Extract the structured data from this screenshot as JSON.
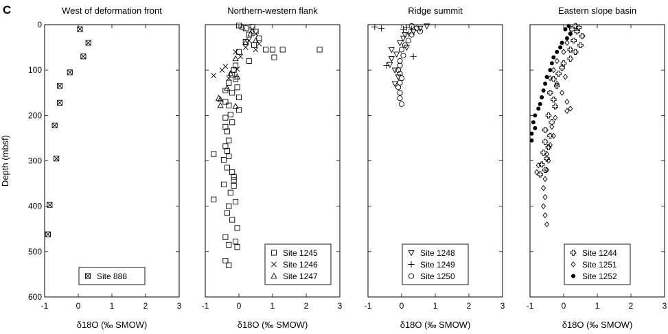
{
  "panel_label": "C",
  "y_axis_label": "Depth (mbsf)",
  "chart_data": [
    {
      "type": "scatter",
      "title": "West of deformation front",
      "xlabel": "δ18O (‰ SMOW)",
      "ylabel": "Depth (mbsf)",
      "xlim": [
        -1,
        3
      ],
      "ylim": [
        600,
        0
      ],
      "x_ticks": [
        -1,
        0,
        1,
        2,
        3
      ],
      "y_ticks": [
        0,
        100,
        200,
        300,
        400,
        500,
        600
      ],
      "legend_position": "bottom-center",
      "series": [
        {
          "name": "Site 888",
          "marker": "boxed-x",
          "points": [
            [
              0.05,
              10
            ],
            [
              0.3,
              40
            ],
            [
              0.15,
              70
            ],
            [
              -0.25,
              105
            ],
            [
              -0.55,
              135
            ],
            [
              -0.55,
              172
            ],
            [
              -0.7,
              222
            ],
            [
              -0.65,
              295
            ],
            [
              -0.85,
              397
            ],
            [
              -0.9,
              462
            ]
          ]
        }
      ]
    },
    {
      "type": "scatter",
      "title": "Northern-western flank",
      "xlabel": "δ18O (‰ SMOW)",
      "ylabel": "",
      "xlim": [
        -1,
        3
      ],
      "ylim": [
        600,
        0
      ],
      "x_ticks": [
        -1,
        0,
        1,
        2,
        3
      ],
      "y_ticks": [
        0,
        100,
        200,
        300,
        400,
        500,
        600
      ],
      "legend_position": "bottom-right",
      "series": [
        {
          "name": "Site 1245",
          "marker": "square",
          "points": [
            [
              0.0,
              2
            ],
            [
              0.2,
              8
            ],
            [
              0.4,
              5
            ],
            [
              0.5,
              15
            ],
            [
              0.3,
              22
            ],
            [
              0.6,
              30
            ],
            [
              0.2,
              38
            ],
            [
              0.45,
              45
            ],
            [
              0.8,
              55
            ],
            [
              1.3,
              55
            ],
            [
              2.4,
              55
            ],
            [
              1.0,
              55
            ],
            [
              0.0,
              60
            ],
            [
              1.05,
              72
            ],
            [
              0.3,
              80
            ],
            [
              -0.1,
              90
            ],
            [
              -0.15,
              100
            ],
            [
              -0.2,
              110
            ],
            [
              -0.1,
              120
            ],
            [
              -0.3,
              128
            ],
            [
              -0.05,
              138
            ],
            [
              -0.4,
              145
            ],
            [
              -0.2,
              150
            ],
            [
              0.0,
              160
            ],
            [
              -0.4,
              170
            ],
            [
              -0.3,
              178
            ],
            [
              0.0,
              188
            ],
            [
              -0.25,
              198
            ],
            [
              -0.4,
              205
            ],
            [
              -0.2,
              215
            ],
            [
              -0.4,
              225
            ],
            [
              -0.35,
              235
            ],
            [
              -0.3,
              255
            ],
            [
              -0.4,
              268
            ],
            [
              -0.35,
              278
            ],
            [
              -0.75,
              285
            ],
            [
              -0.3,
              290
            ],
            [
              -0.45,
              298
            ],
            [
              -0.35,
              315
            ],
            [
              -0.2,
              325
            ],
            [
              -0.15,
              335
            ],
            [
              -0.15,
              342
            ],
            [
              -0.15,
              355
            ],
            [
              -0.45,
              352
            ],
            [
              -0.25,
              370
            ],
            [
              -0.75,
              385
            ],
            [
              -0.1,
              390
            ],
            [
              -0.3,
              400
            ],
            [
              -0.35,
              415
            ],
            [
              -0.2,
              430
            ],
            [
              -0.05,
              448
            ],
            [
              -0.4,
              468
            ],
            [
              -0.1,
              478
            ],
            [
              -0.3,
              485
            ],
            [
              -0.05,
              490
            ],
            [
              -0.4,
              520
            ],
            [
              -0.3,
              530
            ]
          ]
        },
        {
          "name": "Site 1246",
          "marker": "cross",
          "points": [
            [
              0.4,
              10
            ],
            [
              0.5,
              20
            ],
            [
              0.3,
              35
            ],
            [
              0.6,
              42
            ],
            [
              0.2,
              50
            ],
            [
              -0.1,
              60
            ],
            [
              0.05,
              70
            ],
            [
              0.5,
              55
            ],
            [
              -0.4,
              92
            ],
            [
              -0.05,
              98
            ],
            [
              -0.75,
              112
            ],
            [
              -0.3,
              118
            ],
            [
              -0.5,
              100
            ]
          ]
        },
        {
          "name": "Site 1247",
          "marker": "triangle",
          "points": [
            [
              0.1,
              5
            ],
            [
              0.35,
              20
            ],
            [
              0.2,
              40
            ],
            [
              0.5,
              35
            ],
            [
              -0.1,
              75
            ],
            [
              -0.25,
              108
            ],
            [
              -0.05,
              115
            ],
            [
              -0.35,
              140
            ],
            [
              -0.6,
              162
            ],
            [
              -0.55,
              178
            ],
            [
              -0.1,
              180
            ],
            [
              -0.55,
              165
            ]
          ]
        }
      ]
    },
    {
      "type": "scatter",
      "title": "Ridge summit",
      "xlabel": "δ18O (‰ SMOW)",
      "ylabel": "",
      "xlim": [
        -1,
        3
      ],
      "ylim": [
        600,
        0
      ],
      "x_ticks": [
        -1,
        0,
        1,
        2,
        3
      ],
      "y_ticks": [
        0,
        100,
        200,
        300,
        400,
        500,
        600
      ],
      "legend_position": "bottom-center",
      "series": [
        {
          "name": "Site 1248",
          "marker": "triangle-down",
          "points": [
            [
              0.75,
              3
            ],
            [
              0.55,
              8
            ],
            [
              0.35,
              15
            ],
            [
              0.1,
              22
            ],
            [
              0.05,
              30
            ],
            [
              -0.05,
              40
            ],
            [
              -0.3,
              55
            ],
            [
              -0.15,
              65
            ],
            [
              -0.3,
              75
            ],
            [
              -0.35,
              88
            ],
            [
              -0.2,
              100
            ],
            [
              -0.1,
              115
            ],
            [
              -0.2,
              130
            ],
            [
              0.15,
              50
            ]
          ]
        },
        {
          "name": "Site 1249",
          "marker": "plus",
          "points": [
            [
              -0.8,
              5
            ],
            [
              -0.6,
              8
            ],
            [
              0.05,
              10
            ],
            [
              0.15,
              6
            ],
            [
              0.3,
              10
            ],
            [
              0.35,
              70
            ],
            [
              -0.45,
              90
            ],
            [
              0.2,
              20
            ]
          ]
        },
        {
          "name": "Site 1250",
          "marker": "circle",
          "points": [
            [
              0.3,
              3
            ],
            [
              0.45,
              8
            ],
            [
              0.55,
              15
            ],
            [
              0.3,
              22
            ],
            [
              0.2,
              35
            ],
            [
              0.1,
              45
            ],
            [
              0.0,
              55
            ],
            [
              0.05,
              68
            ],
            [
              -0.05,
              80
            ],
            [
              -0.05,
              90
            ],
            [
              -0.1,
              100
            ],
            [
              -0.05,
              108
            ],
            [
              0.0,
              118
            ],
            [
              -0.05,
              128
            ],
            [
              -0.1,
              138
            ],
            [
              -0.05,
              150
            ],
            [
              -0.05,
              162
            ],
            [
              0.0,
              175
            ]
          ]
        }
      ]
    },
    {
      "type": "scatter",
      "title": "Eastern slope basin",
      "xlabel": "δ18O (‰ SMOW)",
      "ylabel": "",
      "xlim": [
        -1,
        3
      ],
      "ylim": [
        600,
        0
      ],
      "x_ticks": [
        -1,
        0,
        1,
        2,
        3
      ],
      "y_ticks": [
        0,
        100,
        200,
        300,
        400,
        500,
        600
      ],
      "legend_position": "bottom-center",
      "series": [
        {
          "name": "Site 1244",
          "marker": "open-cross",
          "points": [
            [
              0.35,
              3
            ],
            [
              0.45,
              6
            ],
            [
              0.25,
              10
            ],
            [
              0.4,
              15
            ],
            [
              0.55,
              25
            ],
            [
              0.3,
              35
            ],
            [
              0.5,
              45
            ],
            [
              0.2,
              55
            ],
            [
              0.35,
              60
            ],
            [
              0.2,
              75
            ],
            [
              0.0,
              85
            ],
            [
              -0.05,
              95
            ],
            [
              -0.15,
              108
            ],
            [
              -0.3,
              120
            ],
            [
              -0.2,
              135
            ],
            [
              -0.4,
              150
            ],
            [
              -0.3,
              165
            ],
            [
              -0.25,
              180
            ],
            [
              -0.45,
              200
            ],
            [
              -0.35,
              215
            ],
            [
              -0.55,
              232
            ],
            [
              -0.4,
              245
            ],
            [
              -0.55,
              258
            ],
            [
              -0.45,
              270
            ],
            [
              -0.6,
              282
            ],
            [
              -0.5,
              295
            ],
            [
              -0.65,
              308
            ],
            [
              -0.55,
              320
            ],
            [
              -0.7,
              330
            ]
          ]
        },
        {
          "name": "Site 1251",
          "marker": "diamond",
          "points": [
            [
              0.2,
              20
            ],
            [
              0.1,
              40
            ],
            [
              0.0,
              60
            ],
            [
              -0.2,
              80
            ],
            [
              -0.3,
              100
            ],
            [
              -0.4,
              118
            ],
            [
              0.05,
              115
            ],
            [
              -0.2,
              130
            ],
            [
              -0.05,
              150
            ],
            [
              0.1,
              170
            ],
            [
              0.2,
              185
            ],
            [
              0.1,
              190
            ],
            [
              -0.25,
              205
            ],
            [
              -0.35,
              225
            ],
            [
              -0.3,
              245
            ],
            [
              -0.4,
              265
            ],
            [
              -0.5,
              285
            ],
            [
              -0.45,
              300
            ],
            [
              -0.5,
              320
            ],
            [
              -0.55,
              340
            ],
            [
              -0.6,
              360
            ],
            [
              -0.55,
              380
            ],
            [
              -0.6,
              400
            ],
            [
              -0.55,
              420
            ],
            [
              -0.5,
              440
            ],
            [
              -0.8,
              325
            ],
            [
              -0.75,
              310
            ]
          ]
        },
        {
          "name": "Site 1252",
          "marker": "filled-circle",
          "points": [
            [
              0.15,
              3
            ],
            [
              0.05,
              10
            ],
            [
              0.2,
              20
            ],
            [
              0.1,
              30
            ],
            [
              -0.05,
              40
            ],
            [
              -0.1,
              50
            ],
            [
              -0.2,
              60
            ],
            [
              -0.3,
              72
            ],
            [
              -0.35,
              85
            ],
            [
              -0.4,
              100
            ],
            [
              -0.5,
              115
            ],
            [
              -0.55,
              130
            ],
            [
              -0.6,
              145
            ],
            [
              -0.65,
              160
            ],
            [
              -0.7,
              175
            ],
            [
              -0.75,
              185
            ],
            [
              -0.85,
              200
            ],
            [
              -0.9,
              215
            ],
            [
              -0.85,
              228
            ],
            [
              -0.95,
              240
            ],
            [
              -0.95,
              255
            ]
          ]
        }
      ]
    }
  ]
}
